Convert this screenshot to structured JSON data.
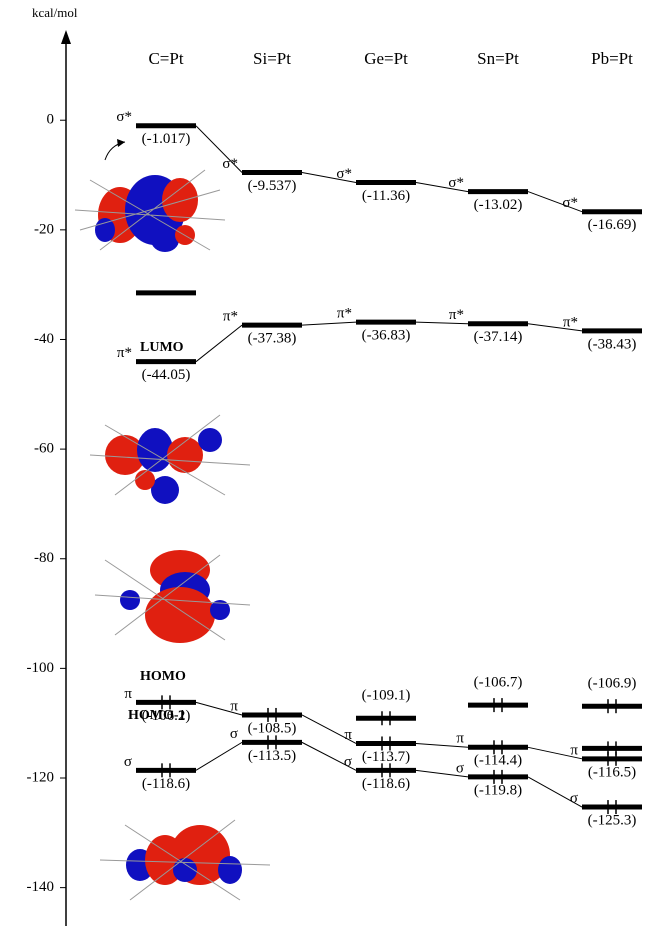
{
  "chart_data": {
    "type": "energy-level",
    "y_label": "kcal/mol",
    "categories": [
      "C=Pt",
      "Si=Pt",
      "Ge=Pt",
      "Sn=Pt",
      "Pb=Pt"
    ],
    "ylim": [
      -147,
      15
    ],
    "yticks": [
      0,
      -20,
      -40,
      -60,
      -80,
      -100,
      -120,
      -140
    ],
    "series": [
      {
        "name": "σ*",
        "occupied": false,
        "values": [
          -1.017,
          -9.537,
          -11.36,
          -13.02,
          -16.69
        ],
        "value_labels": [
          "(-1.017)",
          "(-9.537)",
          "(-11.36)",
          "(-13.02)",
          "(-16.69)"
        ]
      },
      {
        "name": "π*",
        "occupied": false,
        "values": [
          -44.05,
          -37.38,
          -36.83,
          -37.14,
          -38.43
        ],
        "value_labels": [
          "(-44.05)",
          "(-37.38)",
          "(-36.83)",
          "(-37.14)",
          "(-38.43)"
        ]
      },
      {
        "name": "π",
        "occupied": true,
        "values": [
          -106.2,
          -108.5,
          -113.7,
          -114.4,
          -116.5
        ],
        "value_labels": [
          "(-106.2)",
          "(-108.5)",
          "(-113.7)",
          "(-114.4)",
          "(-116.5)"
        ]
      },
      {
        "name": "σ",
        "occupied": true,
        "values": [
          -118.6,
          -113.5,
          -118.6,
          -119.8,
          -125.3
        ],
        "value_labels": [
          "(-118.6)",
          "(-113.5)",
          "(-118.6)",
          "(-119.8)",
          "(-125.3)"
        ]
      }
    ],
    "extra_levels": [
      {
        "category": 0,
        "value": -31.5,
        "occupied": false
      },
      {
        "category": 2,
        "value": -109.1,
        "value_label": "(-109.1)",
        "occupied": true
      },
      {
        "category": 3,
        "value": -106.7,
        "value_label": "(-106.7)",
        "occupied": true
      },
      {
        "category": 4,
        "value": -106.9,
        "value_label": "(-106.9)",
        "occupied": true
      },
      {
        "category": 4,
        "value": -114.6,
        "occupied": true
      }
    ],
    "annotations": [
      "LUMO",
      "HOMO",
      "HOMO-1"
    ]
  }
}
